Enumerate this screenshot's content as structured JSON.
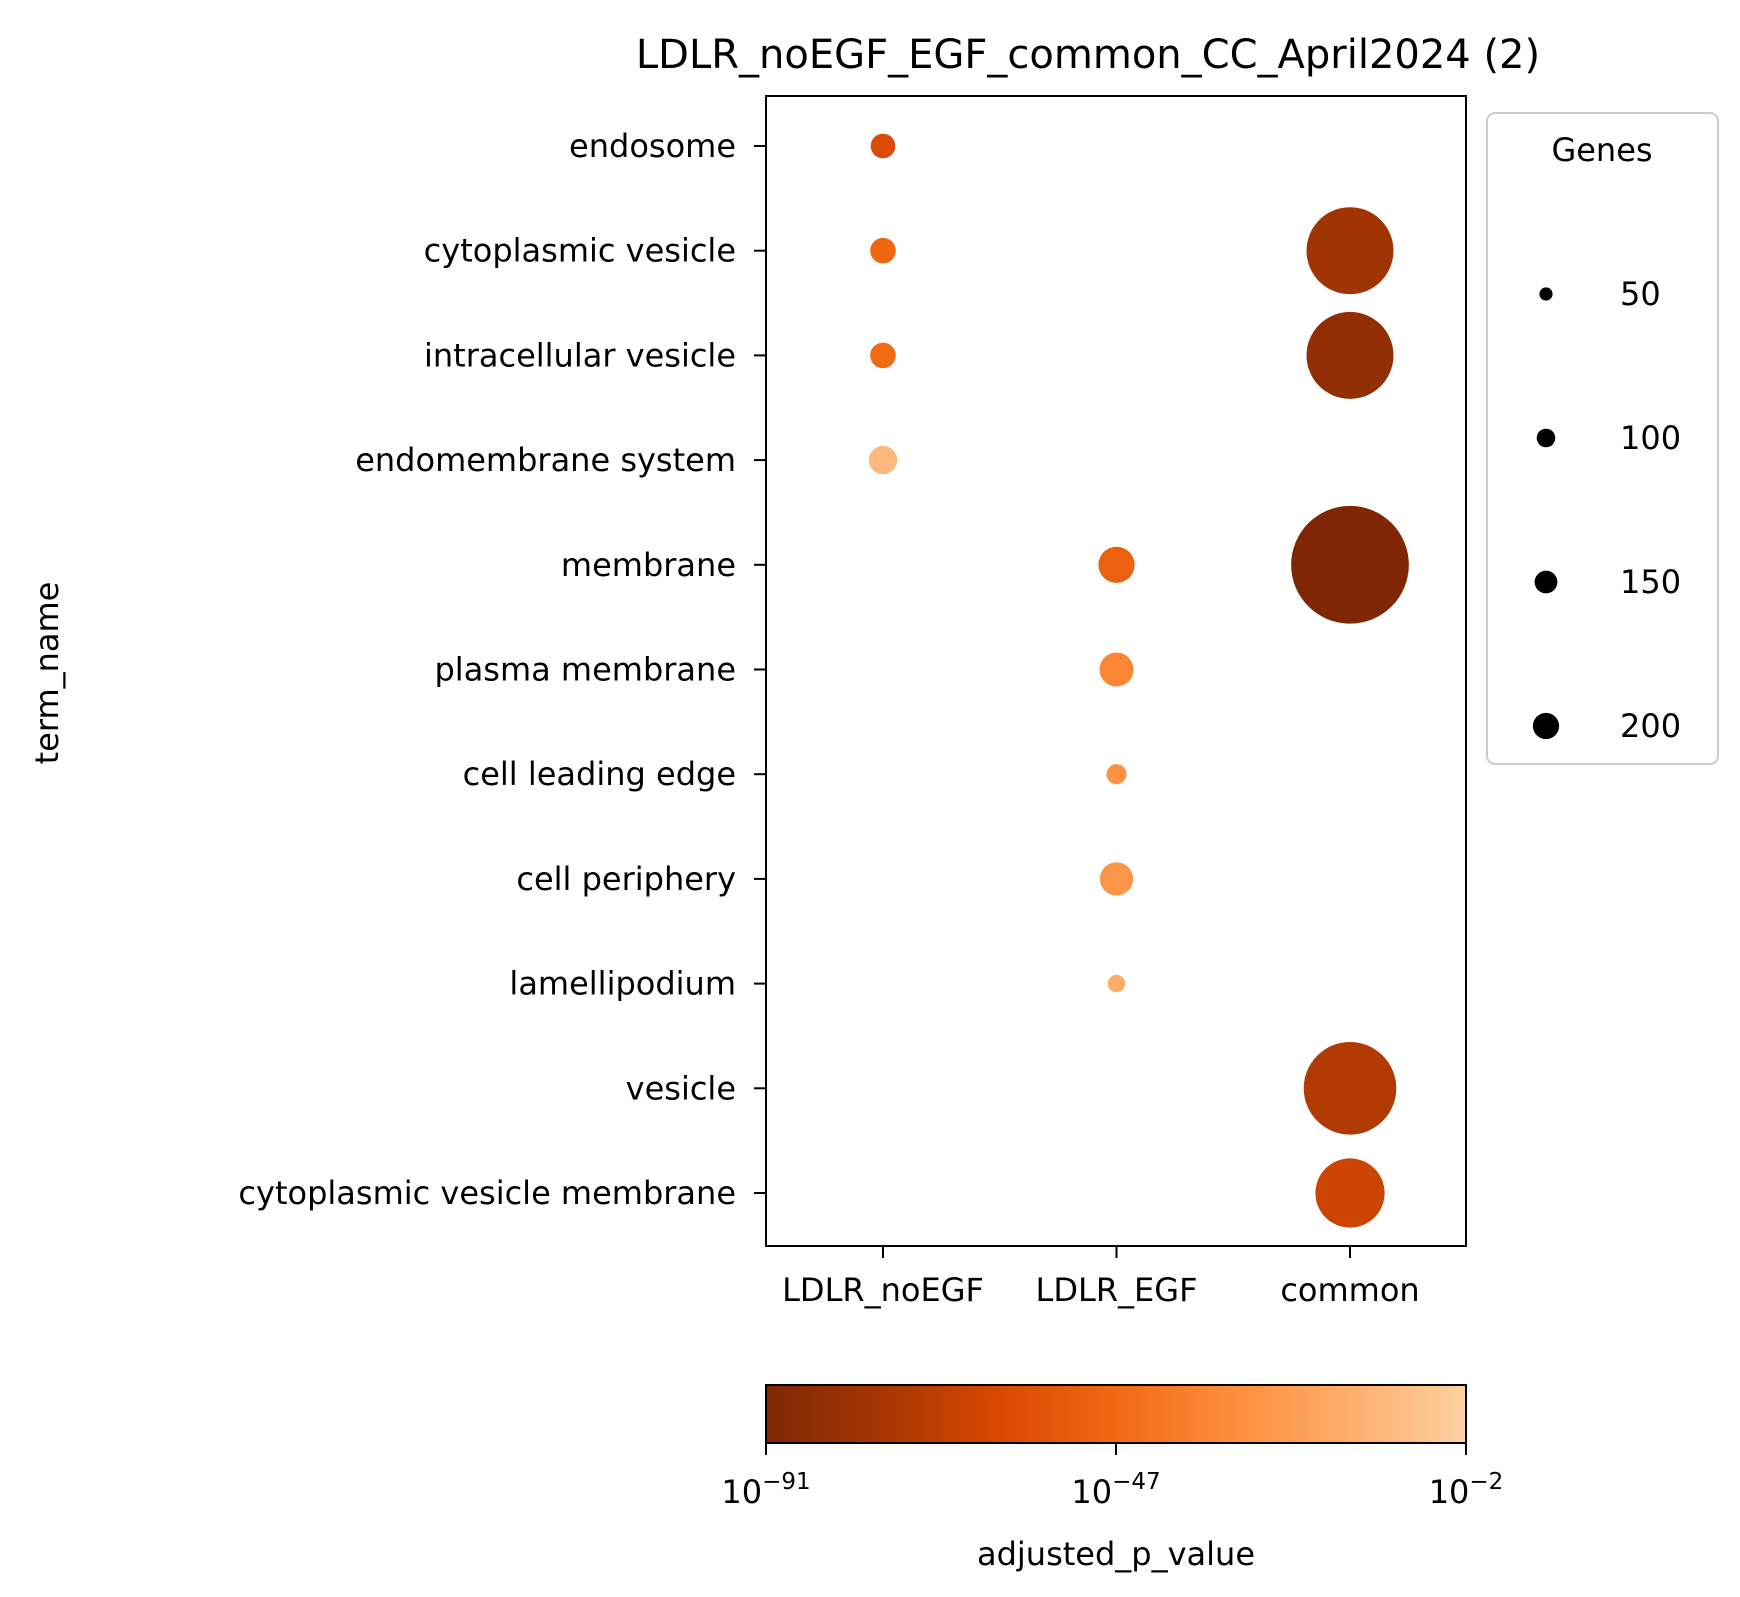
{
  "chart_data": {
    "type": "scatter",
    "title": "LDLR_noEGF_EGF_common_CC_April2024 (2)",
    "xlabel": "",
    "ylabel": "term_name",
    "categories_x": [
      "LDLR_noEGF",
      "LDLR_EGF",
      "common"
    ],
    "categories_y": [
      "endosome",
      "cytoplasmic vesicle",
      "intracellular vesicle",
      "endomembrane system",
      "membrane",
      "plasma membrane",
      "cell leading edge",
      "cell periphery",
      "lamellipodium",
      "vesicle",
      "cytoplasmic vesicle membrane"
    ],
    "points": [
      {
        "x": "LDLR_noEGF",
        "y": "endosome",
        "genes": 12,
        "log10_p": -60
      },
      {
        "x": "LDLR_noEGF",
        "y": "cytoplasmic vesicle",
        "genes": 13,
        "log10_p": -48
      },
      {
        "x": "LDLR_noEGF",
        "y": "intracellular vesicle",
        "genes": 13,
        "log10_p": -46
      },
      {
        "x": "LDLR_noEGF",
        "y": "endomembrane system",
        "genes": 16,
        "log10_p": -12
      },
      {
        "x": "LDLR_EGF",
        "y": "membrane",
        "genes": 26,
        "log10_p": -50
      },
      {
        "x": "LDLR_EGF",
        "y": "plasma membrane",
        "genes": 23,
        "log10_p": -35
      },
      {
        "x": "LDLR_EGF",
        "y": "cell leading edge",
        "genes": 8,
        "log10_p": -30
      },
      {
        "x": "LDLR_EGF",
        "y": "cell periphery",
        "genes": 22,
        "log10_p": -28
      },
      {
        "x": "LDLR_EGF",
        "y": "lamellipodium",
        "genes": 6,
        "log10_p": -18
      },
      {
        "x": "common",
        "y": "cytoplasmic vesicle",
        "genes": 150,
        "log10_p": -78
      },
      {
        "x": "common",
        "y": "intracellular vesicle",
        "genes": 150,
        "log10_p": -84
      },
      {
        "x": "common",
        "y": "membrane",
        "genes": 275,
        "log10_p": -91
      },
      {
        "x": "common",
        "y": "vesicle",
        "genes": 170,
        "log10_p": -73
      },
      {
        "x": "common",
        "y": "cytoplasmic vesicle membrane",
        "genes": 95,
        "log10_p": -65
      }
    ],
    "size_legend": {
      "title": "Genes",
      "entries": [
        {
          "label": "50",
          "value": 50
        },
        {
          "label": "100",
          "value": 100
        },
        {
          "label": "150",
          "value": 150
        },
        {
          "label": "200",
          "value": 200
        }
      ],
      "placement": "outside-right-top"
    },
    "colorbar": {
      "label": "adjusted_p_value",
      "scale": "log",
      "range_log10": [
        -91,
        -2
      ],
      "ticks": [
        {
          "base": "10",
          "exp": "−91"
        },
        {
          "base": "10",
          "exp": "−47"
        },
        {
          "base": "10",
          "exp": "−2"
        }
      ],
      "colors": [
        "#7f2704",
        "#a63603",
        "#d94801",
        "#f16913",
        "#fd8d3c",
        "#fdae6b",
        "#fdd0a2"
      ]
    },
    "grid": false
  }
}
